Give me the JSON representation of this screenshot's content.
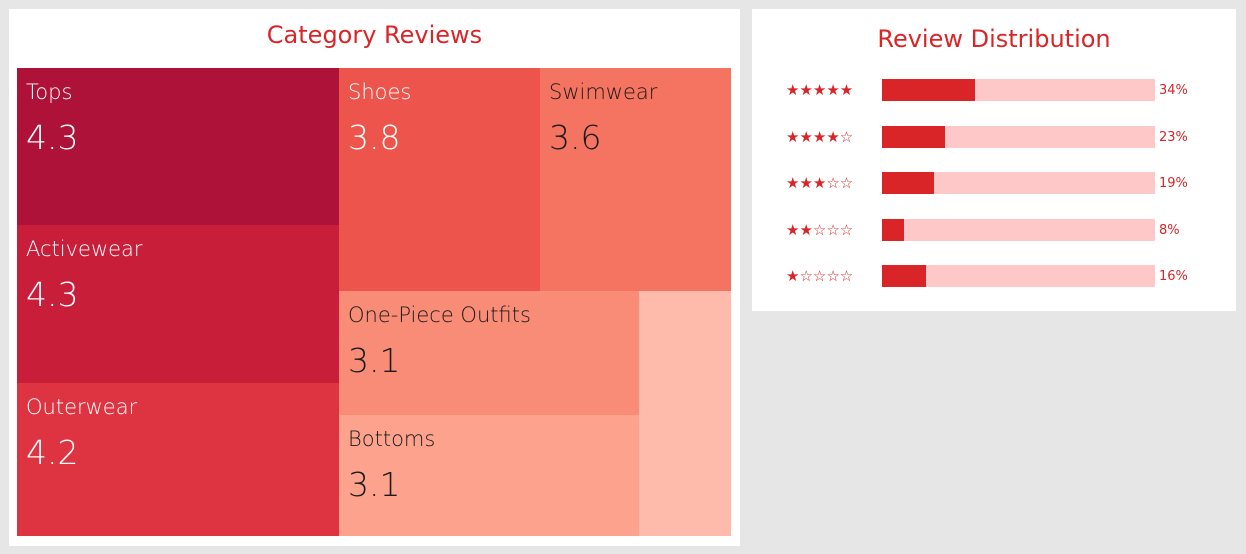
{
  "chart_data": [
    {
      "type": "treemap",
      "title": "Category Reviews",
      "cells": [
        {
          "label": "Tops",
          "value": 4.3
        },
        {
          "label": "Activewear",
          "value": 4.3
        },
        {
          "label": "Outerwear",
          "value": 4.2
        },
        {
          "label": "Shoes",
          "value": 3.8
        },
        {
          "label": "Swimwear",
          "value": 3.6
        },
        {
          "label": "One-Piece Outfits",
          "value": 3.1
        },
        {
          "label": "Bottoms",
          "value": 3.1
        },
        {
          "label": "",
          "value": null
        }
      ]
    },
    {
      "type": "bar",
      "orientation": "horizontal",
      "title": "Review Distribution",
      "categories": [
        "★★★★★",
        "★★★★☆",
        "★★★☆☆",
        "★★☆☆☆",
        "★☆☆☆☆"
      ],
      "values": [
        34,
        23,
        19,
        8,
        16
      ],
      "value_labels": [
        "34%",
        "23%",
        "19%",
        "8%",
        "16%"
      ],
      "xlim": [
        0,
        100
      ],
      "colors": {
        "fill": "#d92528",
        "track": "#ffc8c8"
      }
    }
  ],
  "colors": {
    "accent": "#d92528",
    "tops": "#ae1238",
    "activewear": "#c91e3a",
    "outerwear": "#de3442",
    "shoes": "#ec544c",
    "swimwear": "#f47361",
    "one_piece_outfits": "#f98c76",
    "bottoms": "#fca28d",
    "other": "#febbab"
  }
}
